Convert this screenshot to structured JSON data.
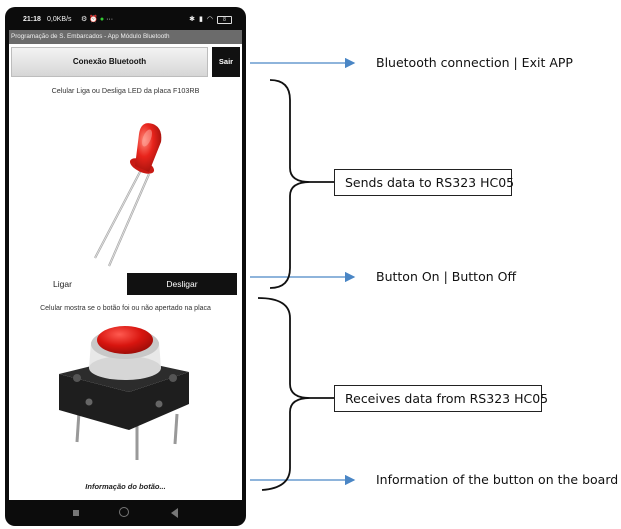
{
  "app": {
    "status": {
      "time": "21:18",
      "network": "0,0KB/s",
      "battery": "8"
    },
    "title_bar": "Programação de S. Embarcados - App Módulo Bluetooth",
    "connect_button": "Conexão Bluetooth",
    "exit_button": "Sair",
    "led_label": "Celular Liga ou Desliga LED da placa F103RB",
    "on_button": "Ligar",
    "off_button": "Desligar",
    "button_label": "Celular mostra se o botão foi ou não apertado na placa",
    "button_info": "Informação do botão..."
  },
  "annotations": {
    "bluetooth_exit": "Bluetooth connection | Exit APP",
    "sends_data": "Sends data to RS323  HC05",
    "on_off": "Button On | Button Off",
    "receives_data": "Receives data from RS323  HC05",
    "button_info": "Information of the button on the board"
  },
  "colors": {
    "arrow": "#4a86c5",
    "phone_frame": "#0c0c0c",
    "title_bar": "#6b6b6b",
    "led_red": "#e8241c",
    "dark_button": "#111111"
  }
}
